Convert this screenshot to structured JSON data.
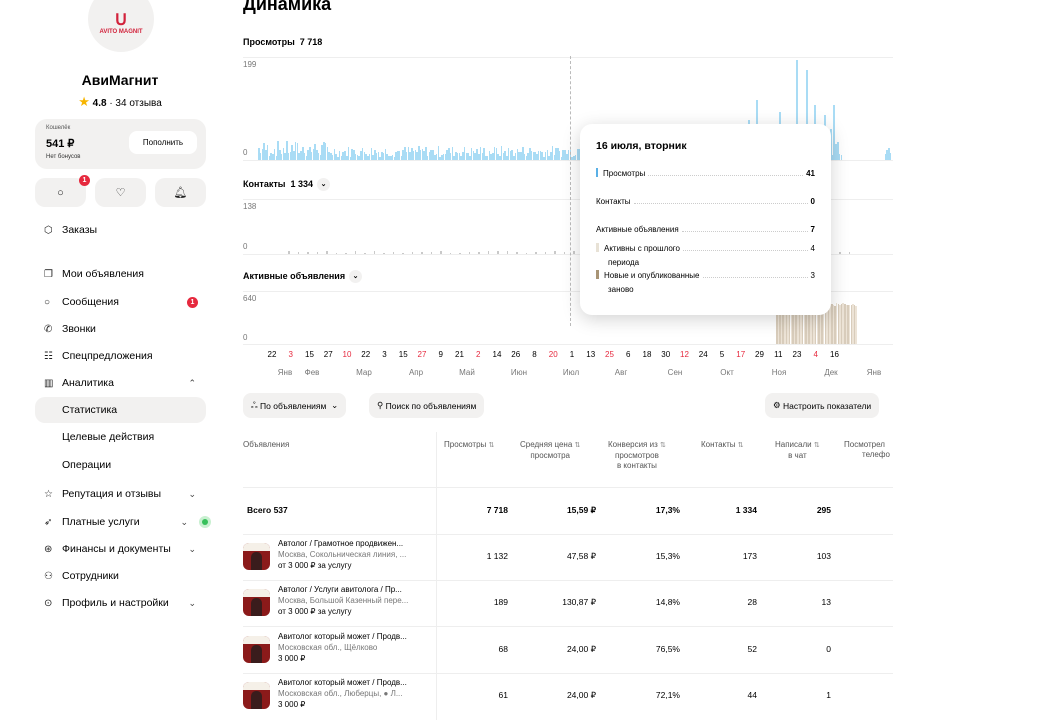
{
  "sidebar": {
    "logo_text": "AVITO MAGNIT",
    "shop_name": "АвиМагнит",
    "rating": "4.8",
    "reviews": "· 34 отзыва",
    "wallet": {
      "label": "Кошелёк",
      "balance": "541 ₽",
      "bonus": "Нет бонусов",
      "topup": "Пополнить"
    },
    "messages_badge": "1",
    "items": [
      {
        "label": "Заказы",
        "icon": "box-icon"
      },
      {
        "label": "Мои объявления",
        "icon": "copy-icon"
      },
      {
        "label": "Сообщения",
        "icon": "chat-icon",
        "badge": "1"
      },
      {
        "label": "Звонки",
        "icon": "phone-icon"
      },
      {
        "label": "Спецпредложения",
        "icon": "promo-icon"
      },
      {
        "label": "Аналитика",
        "icon": "chart-icon",
        "chevron": "⌃"
      },
      {
        "label": "Статистика"
      },
      {
        "label": "Целевые действия"
      },
      {
        "label": "Операции"
      },
      {
        "label": "Репутация и отзывы",
        "icon": "star-icon",
        "chevron": "⌄"
      },
      {
        "label": "Платные услуги",
        "icon": "rocket-icon",
        "chevron": "⌄"
      },
      {
        "label": "Финансы и документы",
        "icon": "finance-icon",
        "chevron": "⌄"
      },
      {
        "label": "Сотрудники",
        "icon": "people-icon"
      },
      {
        "label": "Профиль и настройки",
        "icon": "settings-icon",
        "chevron": "⌄"
      }
    ]
  },
  "main": {
    "title": "Динамика",
    "views": {
      "label": "Просмотры",
      "value": "7 718",
      "ymax": "199",
      "ymin": "0"
    },
    "contacts": {
      "label": "Контакты",
      "value": "1 334",
      "ymax": "138",
      "ymin": "0"
    },
    "active": {
      "label": "Активные объявления",
      "ymax": "640",
      "ymin": "0"
    },
    "x_days": [
      {
        "t": "22",
        "red": false
      },
      {
        "t": "3",
        "red": true
      },
      {
        "t": "15",
        "red": false
      },
      {
        "t": "27",
        "red": false
      },
      {
        "t": "10",
        "red": true
      },
      {
        "t": "22",
        "red": false
      },
      {
        "t": "3",
        "red": false
      },
      {
        "t": "15",
        "red": false
      },
      {
        "t": "27",
        "red": true
      },
      {
        "t": "9",
        "red": false
      },
      {
        "t": "21",
        "red": false
      },
      {
        "t": "2",
        "red": true
      },
      {
        "t": "14",
        "red": false
      },
      {
        "t": "26",
        "red": false
      },
      {
        "t": "8",
        "red": false
      },
      {
        "t": "20",
        "red": true
      },
      {
        "t": "1",
        "red": false
      },
      {
        "t": "13",
        "red": false
      },
      {
        "t": "25",
        "red": true
      },
      {
        "t": "6",
        "red": false
      },
      {
        "t": "18",
        "red": false
      },
      {
        "t": "30",
        "red": false
      },
      {
        "t": "12",
        "red": true
      },
      {
        "t": "24",
        "red": false
      },
      {
        "t": "5",
        "red": false
      },
      {
        "t": "17",
        "red": true
      },
      {
        "t": "29",
        "red": false
      },
      {
        "t": "11",
        "red": false
      },
      {
        "t": "23",
        "red": false
      },
      {
        "t": "4",
        "red": true
      },
      {
        "t": "16",
        "red": false
      }
    ],
    "x_months": [
      "Янв",
      "Фев",
      "Мар",
      "Апр",
      "Май",
      "Июн",
      "Июл",
      "Авг",
      "Сен",
      "Окт",
      "Ноя",
      "Дек",
      "Янв"
    ],
    "tooltip": {
      "date": "16 июля, вторник",
      "views_label": "Просмотры",
      "views": "41",
      "contacts_label": "Контакты",
      "contacts": "0",
      "active_label": "Активные объявления",
      "active": "7",
      "prev_label": "Активны с прошлого",
      "prev_label2": "периода",
      "prev": "4",
      "new_label": "Новые и опубликованные",
      "new_label2": "заново",
      "new": "3"
    },
    "filters": {
      "by_ads": "По объявлениям",
      "search": "Поиск по объявлениям",
      "configure": "Настроить показатели"
    },
    "table": {
      "headers": [
        "Объявления",
        "Просмотры",
        "Средняя цена",
        "просмотра",
        "Конверсия из",
        "просмотров",
        "в контакты",
        "Контакты",
        "Написали",
        "в чат",
        "Посмотрел",
        "телефо"
      ],
      "total": {
        "label": "Всего 537",
        "views": "7 718",
        "price": "15,59 ₽",
        "conv": "17,3%",
        "contacts": "1 334",
        "chat": "295"
      },
      "rows": [
        {
          "title": "Автолог / Грамотное продвижен...",
          "addr": "Москва, Сокольническая линия, ...",
          "price": "от 3 000 ₽ за услугу",
          "views": "1 132",
          "avg": "47,58 ₽",
          "conv": "15,3%",
          "contacts": "173",
          "chat": "103"
        },
        {
          "title": "Автолог / Услуги авитолога / Пр...",
          "addr": "Москва, Большой Казенный пере...",
          "price": "от 3 000 ₽ за услугу",
          "views": "189",
          "avg": "130,87 ₽",
          "conv": "14,8%",
          "contacts": "28",
          "chat": "13"
        },
        {
          "title": "Авитолог который может / Продв...",
          "addr": "Московская обл., Щёлково",
          "price": "3 000 ₽",
          "views": "68",
          "avg": "24,00 ₽",
          "conv": "76,5%",
          "contacts": "52",
          "chat": "0"
        },
        {
          "title": "Авитолог который может / Продв...",
          "addr": "Московская обл., Люберцы, ● Л...",
          "price": "3 000 ₽",
          "views": "61",
          "avg": "24,00 ₽",
          "conv": "72,1%",
          "contacts": "44",
          "chat": "1"
        }
      ]
    }
  },
  "colors": {
    "accent": "#a9dcf5",
    "red": "#e6293e",
    "green": "#36c05a",
    "bar_active": "#ece3d6"
  }
}
